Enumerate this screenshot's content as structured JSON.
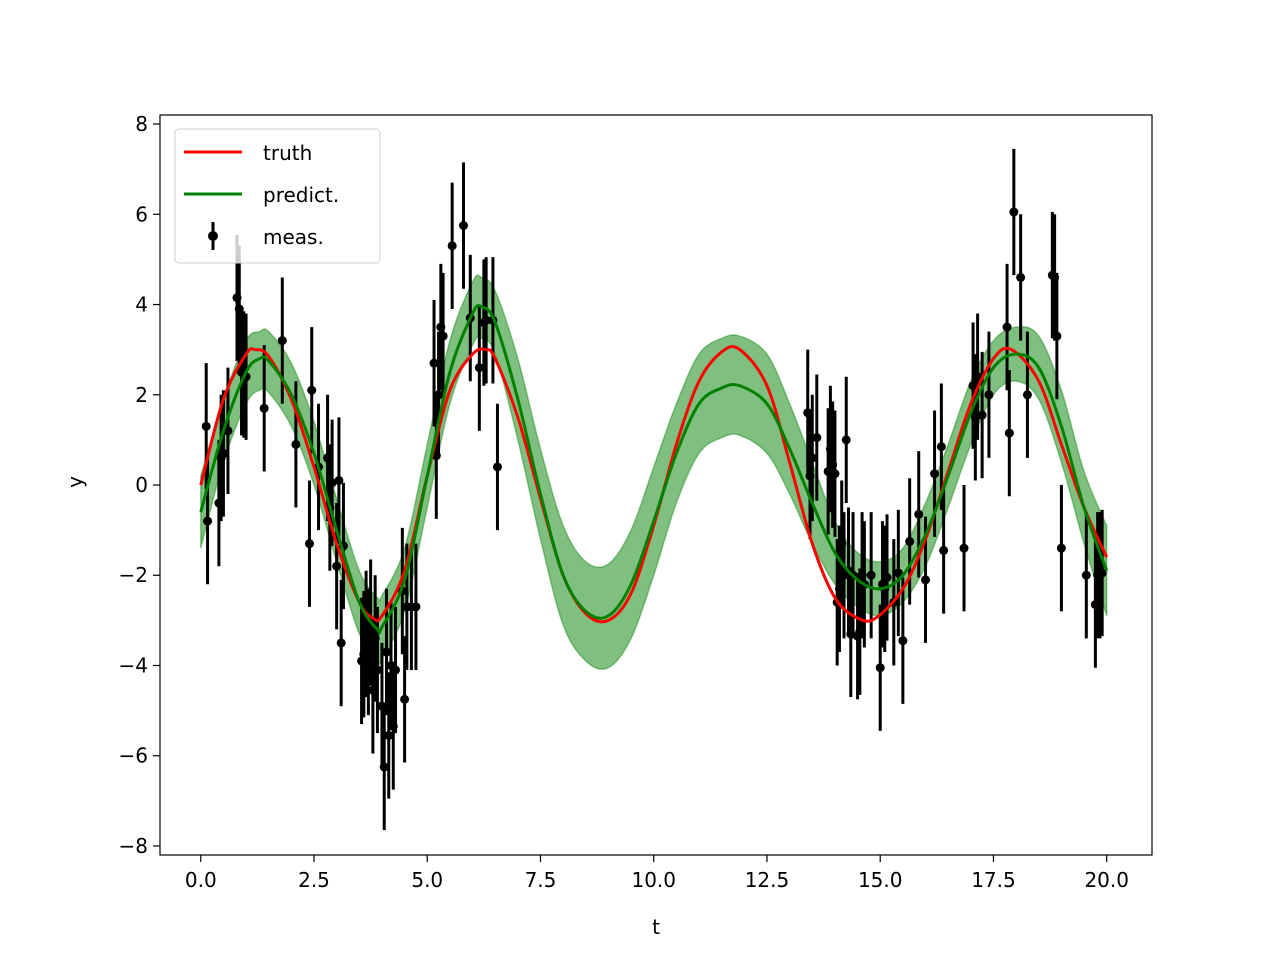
{
  "chart_data": {
    "type": "line",
    "title": "",
    "xlabel": "t",
    "ylabel": "y",
    "xlim": [
      -0.9,
      21.0
    ],
    "ylim": [
      -8.2,
      8.2
    ],
    "xticks": [
      0.0,
      2.5,
      5.0,
      7.5,
      10.0,
      12.5,
      15.0,
      17.5,
      20.0
    ],
    "xtick_labels": [
      "0.0",
      "2.5",
      "5.0",
      "7.5",
      "10.0",
      "12.5",
      "15.0",
      "17.5",
      "20.0"
    ],
    "yticks": [
      -8,
      -6,
      -4,
      -2,
      0,
      2,
      4,
      6,
      8
    ],
    "ytick_labels": [
      "−8",
      "−6",
      "−4",
      "−2",
      "0",
      "2",
      "4",
      "6",
      "8"
    ],
    "grid": false,
    "legend_position": "top-left",
    "series": [
      {
        "name": "truth",
        "kind": "line",
        "color": "#ff0000",
        "x": [
          0.0,
          0.5,
          1.0,
          1.2,
          1.5,
          2.0,
          2.5,
          3.0,
          3.5,
          3.8,
          4.0,
          4.5,
          5.0,
          5.5,
          6.0,
          6.3,
          6.5,
          7.0,
          7.5,
          8.0,
          8.5,
          9.0,
          9.5,
          10.0,
          10.5,
          11.0,
          11.5,
          11.9,
          12.5,
          13.0,
          13.5,
          14.0,
          14.5,
          14.9,
          15.5,
          16.0,
          16.5,
          17.0,
          17.5,
          17.9,
          18.5,
          19.0,
          19.5,
          20.0
        ],
        "y": [
          0.0,
          1.9,
          2.9,
          3.0,
          2.85,
          1.9,
          0.4,
          -1.3,
          -2.6,
          -2.95,
          -2.9,
          -1.9,
          0.2,
          2.1,
          2.9,
          3.0,
          2.8,
          1.5,
          -0.3,
          -2.0,
          -2.85,
          -3.0,
          -2.4,
          -0.9,
          0.9,
          2.3,
          2.95,
          3.0,
          2.2,
          0.5,
          -1.3,
          -2.5,
          -2.95,
          -2.95,
          -2.3,
          -1.2,
          0.3,
          1.8,
          2.8,
          3.0,
          2.3,
          0.9,
          -0.5,
          -1.6
        ]
      },
      {
        "name": "predict.",
        "kind": "line",
        "color": "#008000",
        "band_color": "#008000",
        "x": [
          0.0,
          0.5,
          1.0,
          1.3,
          1.5,
          2.0,
          2.5,
          3.0,
          3.5,
          3.9,
          4.0,
          4.5,
          5.0,
          5.5,
          6.0,
          6.2,
          6.5,
          7.0,
          7.5,
          8.0,
          8.5,
          9.0,
          9.5,
          10.0,
          10.5,
          11.0,
          11.5,
          11.9,
          12.5,
          13.0,
          13.5,
          14.0,
          14.5,
          15.0,
          15.5,
          16.0,
          16.5,
          17.0,
          17.5,
          18.0,
          18.5,
          19.0,
          19.5,
          20.0
        ],
        "y": [
          -0.6,
          1.2,
          2.5,
          2.8,
          2.75,
          2.0,
          0.7,
          -1.0,
          -2.6,
          -3.2,
          -3.15,
          -2.1,
          0.2,
          2.5,
          3.8,
          3.95,
          3.6,
          1.9,
          -0.2,
          -2.0,
          -2.8,
          -2.9,
          -2.2,
          -0.8,
          0.7,
          1.8,
          2.15,
          2.2,
          1.8,
          0.8,
          -0.4,
          -1.5,
          -2.1,
          -2.3,
          -2.0,
          -1.1,
          0.2,
          1.6,
          2.6,
          2.9,
          2.6,
          1.3,
          -0.5,
          -1.9
        ],
        "lower": [
          -1.4,
          0.5,
          1.8,
          2.1,
          2.05,
          1.3,
          0.0,
          -1.7,
          -3.3,
          -3.9,
          -3.85,
          -2.8,
          -0.5,
          1.8,
          3.1,
          3.25,
          2.9,
          1.0,
          -1.2,
          -3.1,
          -3.9,
          -4.05,
          -3.4,
          -2.0,
          -0.4,
          0.7,
          1.05,
          1.1,
          0.7,
          -0.2,
          -1.3,
          -2.2,
          -2.7,
          -2.9,
          -2.6,
          -1.8,
          -0.5,
          0.9,
          2.0,
          2.3,
          1.9,
          0.5,
          -1.3,
          -2.9
        ],
        "upper": [
          0.2,
          1.9,
          3.2,
          3.4,
          3.4,
          2.7,
          1.4,
          -0.3,
          -1.9,
          -2.5,
          -2.45,
          -1.4,
          0.9,
          3.2,
          4.5,
          4.6,
          4.3,
          2.8,
          0.8,
          -0.9,
          -1.7,
          -1.75,
          -1.0,
          0.4,
          1.8,
          2.9,
          3.25,
          3.3,
          2.9,
          1.8,
          0.5,
          -0.8,
          -1.5,
          -1.7,
          -1.4,
          -0.4,
          0.9,
          2.3,
          3.2,
          3.5,
          3.3,
          2.1,
          0.3,
          -0.9
        ]
      },
      {
        "name": "meas.",
        "kind": "errorbar",
        "color": "#000000",
        "yerr": 1.4,
        "x": [
          0.12,
          0.15,
          0.4,
          0.45,
          0.5,
          0.6,
          0.8,
          0.85,
          0.9,
          0.95,
          1.0,
          1.4,
          1.8,
          2.1,
          2.4,
          2.45,
          2.6,
          2.8,
          2.85,
          2.9,
          3.0,
          3.05,
          3.1,
          3.15,
          3.55,
          3.6,
          3.65,
          3.7,
          3.75,
          3.8,
          3.85,
          3.9,
          4.0,
          4.05,
          4.1,
          4.15,
          4.2,
          4.25,
          4.3,
          4.45,
          4.5,
          4.55,
          4.65,
          4.75,
          5.15,
          5.2,
          5.25,
          5.3,
          5.35,
          5.55,
          5.8,
          5.95,
          6.15,
          6.25,
          6.3,
          6.45,
          6.55,
          13.4,
          13.45,
          13.5,
          13.6,
          13.85,
          13.9,
          13.95,
          14.0,
          14.05,
          14.1,
          14.15,
          14.2,
          14.25,
          14.3,
          14.35,
          14.4,
          14.5,
          14.55,
          14.6,
          14.65,
          14.8,
          15.0,
          15.05,
          15.1,
          15.15,
          15.3,
          15.4,
          15.5,
          15.65,
          15.85,
          16.0,
          16.2,
          16.35,
          16.4,
          16.85,
          17.05,
          17.1,
          17.15,
          17.25,
          17.4,
          17.8,
          17.85,
          17.95,
          18.1,
          18.25,
          18.8,
          18.85,
          18.9,
          19.0,
          19.55,
          19.75,
          19.8,
          19.85,
          19.9
        ],
        "y": [
          1.3,
          -0.8,
          -0.4,
          0.6,
          0.7,
          1.2,
          4.15,
          3.9,
          2.5,
          2.45,
          2.4,
          1.7,
          3.2,
          0.9,
          -1.3,
          2.1,
          0.4,
          0.6,
          -0.5,
          0.05,
          -1.8,
          0.1,
          -3.5,
          -1.35,
          -3.9,
          -3.75,
          -3.3,
          -3.7,
          -3.05,
          -4.55,
          -3.4,
          -4.1,
          -4.9,
          -6.25,
          -3.7,
          -5.55,
          -4.0,
          -5.35,
          -4.1,
          -2.35,
          -4.75,
          -2.7,
          -2.7,
          -2.7,
          2.7,
          0.65,
          2.0,
          3.5,
          3.3,
          5.3,
          5.75,
          3.7,
          2.6,
          3.6,
          3.65,
          3.65,
          0.4,
          1.6,
          0.2,
          0.6,
          1.05,
          0.3,
          0.8,
          0.45,
          0.25,
          -2.6,
          -2.3,
          -1.3,
          -2.0,
          1.0,
          -1.9,
          -3.3,
          -2.0,
          -3.35,
          -3.25,
          -2.0,
          -2.2,
          -2.0,
          -4.05,
          -2.2,
          -2.3,
          -2.05,
          -2.6,
          -1.95,
          -3.45,
          -1.25,
          -0.65,
          -2.1,
          0.25,
          0.85,
          -1.45,
          -1.4,
          2.2,
          1.5,
          2.4,
          1.55,
          2.0,
          3.5,
          1.15,
          6.05,
          4.6,
          2.0,
          4.65,
          4.6,
          3.3,
          -1.4,
          -2.0,
          -2.65,
          -2.0,
          -2.0,
          -1.95
        ]
      }
    ]
  }
}
